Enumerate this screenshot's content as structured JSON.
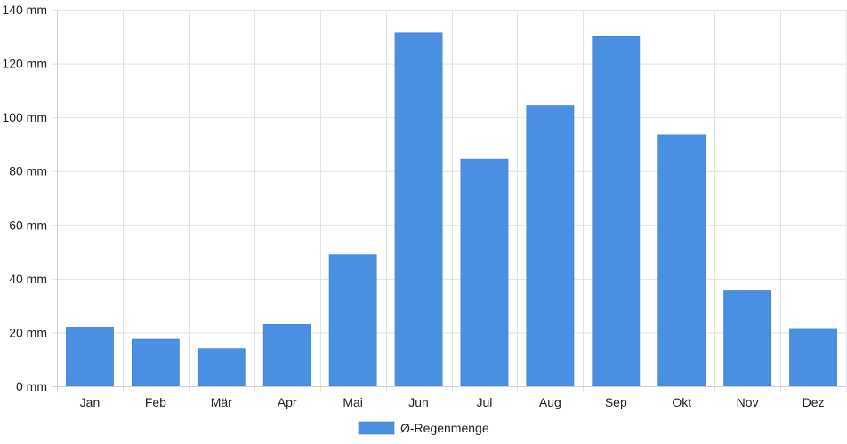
{
  "chart_data": {
    "type": "bar",
    "categories": [
      "Jan",
      "Feb",
      "Mär",
      "Apr",
      "Mai",
      "Jun",
      "Jul",
      "Aug",
      "Sep",
      "Okt",
      "Nov",
      "Dez"
    ],
    "series": [
      {
        "name": "Ø-Regenmenge",
        "color": "#4a90e2",
        "values": [
          22,
          17.5,
          14,
          23,
          49,
          131.5,
          84.5,
          104.5,
          130,
          93.5,
          35.5,
          21.5
        ]
      }
    ],
    "y_ticks": [
      "0 mm",
      "20 mm",
      "40 mm",
      "60 mm",
      "80 mm",
      "100 mm",
      "120 mm",
      "140 mm"
    ],
    "ylim": [
      0,
      140
    ],
    "unit": "mm",
    "grid": true,
    "legend_position": "bottom-center"
  }
}
